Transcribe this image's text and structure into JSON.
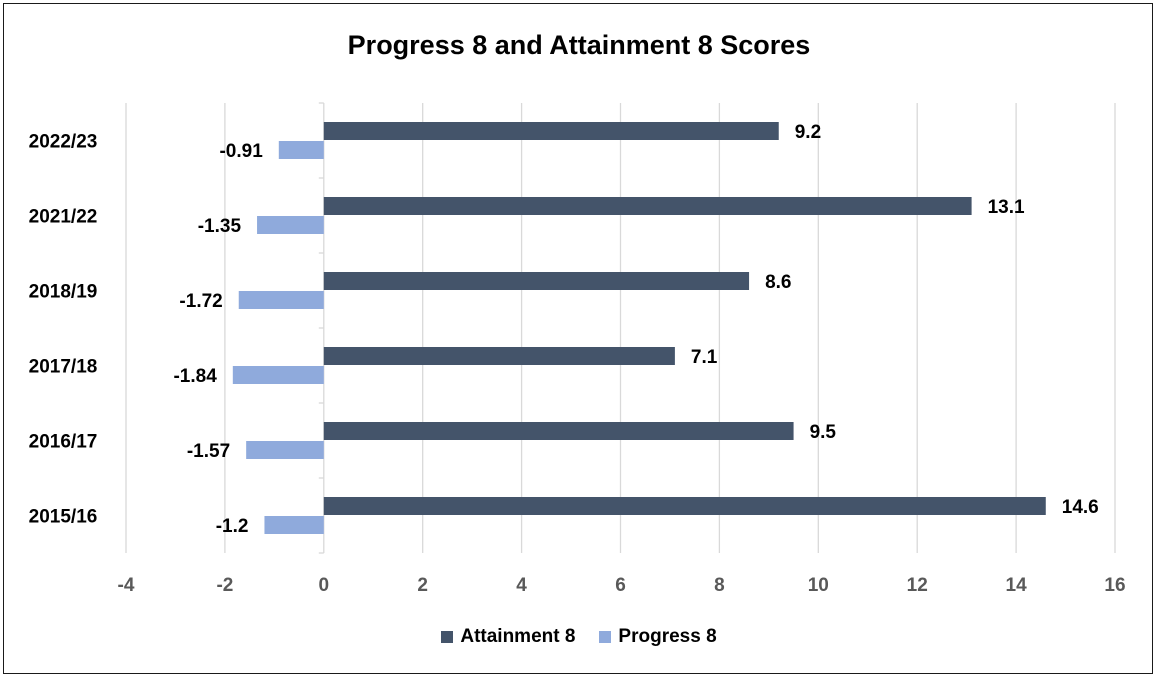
{
  "chart_data": {
    "type": "bar",
    "orientation": "horizontal",
    "title": "Progress 8 and Attainment 8 Scores",
    "xlabel": "",
    "ylabel": "",
    "categories": [
      "2022/23",
      "2021/22",
      "2018/19",
      "2017/18",
      "2016/17",
      "2015/16"
    ],
    "series": [
      {
        "name": "Attainment 8",
        "color": "#44546a",
        "values": [
          9.2,
          13.1,
          8.6,
          7.1,
          9.5,
          14.6
        ]
      },
      {
        "name": "Progress 8",
        "color": "#8faadc",
        "values": [
          -0.91,
          -1.35,
          -1.72,
          -1.84,
          -1.57,
          -1.2
        ]
      }
    ],
    "xlim": [
      -4,
      16
    ],
    "xticks": [
      "-4",
      "-2",
      "0",
      "2",
      "4",
      "6",
      "8",
      "10",
      "12",
      "14",
      "16"
    ],
    "grid": true,
    "legend_position": "bottom",
    "data_labels": {
      "Attainment 8": [
        "9.2",
        "13.1",
        "8.6",
        "7.1",
        "9.5",
        "14.6"
      ],
      "Progress 8": [
        "-0.91",
        "-1.35",
        "-1.72",
        "-1.84",
        "-1.57",
        "-1.2"
      ]
    }
  }
}
